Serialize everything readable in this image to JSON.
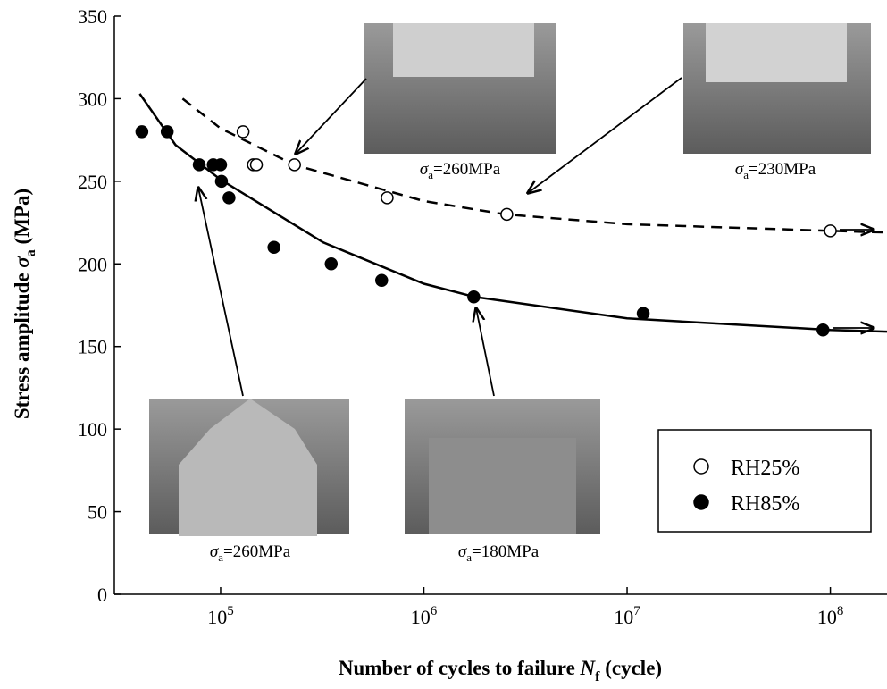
{
  "chart_data": {
    "type": "scatter",
    "xlabel": {
      "text": "Number of cycles to failure ",
      "symbol": "N",
      "sub": "f",
      "unit": " (cycle)"
    },
    "ylabel": {
      "text": "Stress amplitude ",
      "symbol": "σ",
      "sub": "a",
      "unit": " (MPa)"
    },
    "xscale": "log",
    "xlim": [
      30000,
      190000000
    ],
    "ylim": [
      0,
      350
    ],
    "xticks": [
      {
        "value": 100000,
        "label": "10",
        "exponent": "5"
      },
      {
        "value": 1000000,
        "label": "10",
        "exponent": "6"
      },
      {
        "value": 10000000,
        "label": "10",
        "exponent": "7"
      },
      {
        "value": 100000000,
        "label": "10",
        "exponent": "8"
      }
    ],
    "yticks": [
      0,
      50,
      100,
      150,
      200,
      250,
      300,
      350
    ],
    "legend": "lower right",
    "series": [
      {
        "name": "RH25%",
        "marker": "open",
        "color": "#000000",
        "x": [
          129000,
          145000,
          150000,
          231000,
          660000,
          2560000,
          100000000
        ],
        "values": [
          280,
          260,
          260,
          260,
          240,
          230,
          220
        ]
      },
      {
        "name": "RH85%",
        "marker": "filled",
        "color": "#000000",
        "x": [
          41000,
          54600,
          78500,
          92000,
          100000,
          101000,
          110000,
          183000,
          350000,
          620000,
          1760000,
          12000000,
          92000000
        ],
        "values": [
          280,
          280,
          260,
          260,
          260,
          250,
          240,
          210,
          200,
          190,
          180,
          170,
          160
        ]
      }
    ],
    "fits": [
      {
        "dash": true,
        "color": "#000000",
        "x": [
          65000,
          100000,
          230000,
          1000000,
          2500000,
          10000000,
          100000000,
          190000000
        ],
        "values": [
          300,
          282,
          260,
          238,
          230,
          224,
          220,
          219
        ]
      },
      {
        "dash": false,
        "color": "#000000",
        "x": [
          40000,
          60000,
          100000,
          320000,
          1000000,
          1780000,
          10000000,
          100000000,
          190000000
        ],
        "values": [
          303,
          272,
          251,
          213,
          188,
          180,
          167,
          160,
          159
        ]
      }
    ],
    "annotations": [
      {
        "symbol": "σ",
        "sub": "a",
        "text": "=260MPa"
      },
      {
        "symbol": "σ",
        "sub": "a",
        "text": "=230MPa"
      },
      {
        "symbol": "σ",
        "sub": "a",
        "text": "=260MPa"
      },
      {
        "symbol": "σ",
        "sub": "a",
        "text": "=180MPa"
      }
    ]
  }
}
